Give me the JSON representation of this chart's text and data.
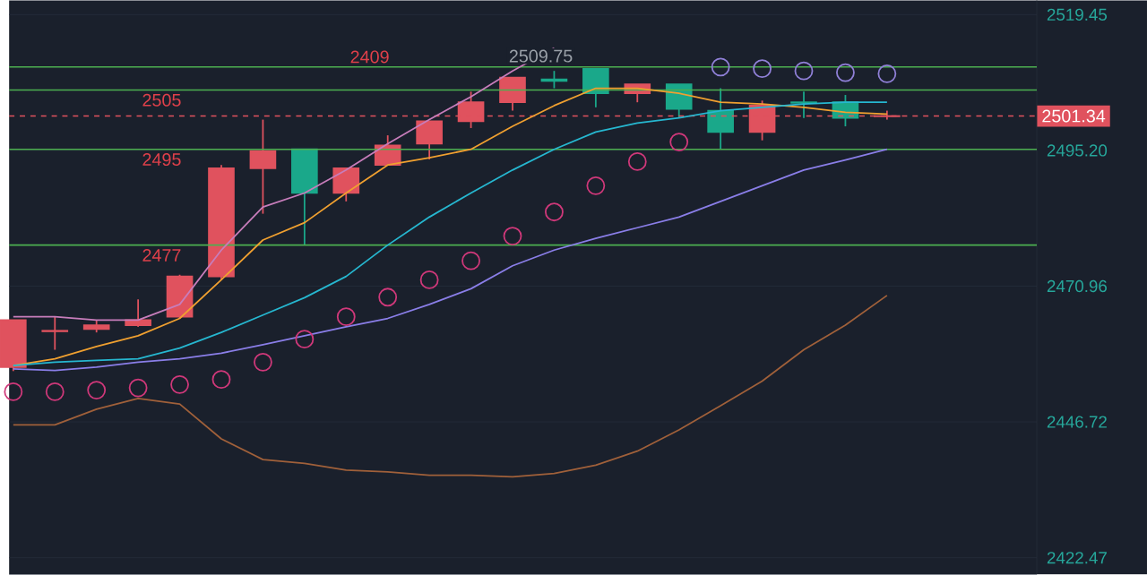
{
  "chart_data": {
    "type": "candlestick",
    "categories": [
      null,
      null,
      null,
      null,
      null,
      null,
      null,
      null,
      null,
      null,
      null,
      null,
      null,
      null,
      null,
      null,
      null,
      null,
      null,
      null,
      null,
      null
    ],
    "ohlc": [
      [
        2456.5,
        2464.9,
        2455.8,
        2464.9
      ],
      [
        2463.0,
        2465.5,
        2459.6,
        2462.9
      ],
      [
        2463.3,
        2464.9,
        2462.7,
        2464.0
      ],
      [
        2464.0,
        2468.6,
        2463.7,
        2464.9
      ],
      [
        2465.5,
        2473.0,
        2465.2,
        2472.7
      ],
      [
        2472.7,
        2492.6,
        2472.1,
        2492.0
      ],
      [
        2492.0,
        2500.7,
        2483.9,
        2495.1
      ],
      [
        2495.4,
        2495.4,
        2478.3,
        2487.6
      ],
      [
        2487.6,
        2492.0,
        2486.1,
        2492.0
      ],
      [
        2492.6,
        2497.9,
        2492.6,
        2496.1
      ],
      [
        2496.4,
        2500.4,
        2493.6,
        2500.4
      ],
      [
        2500.4,
        2505.7,
        2499.2,
        2503.8
      ],
      [
        2503.8,
        2508.2,
        2502.3,
        2508.2
      ],
      [
        2507.9,
        2509.4,
        2506.3,
        2507.6
      ],
      [
        2509.75,
        2509.75,
        2502.9,
        2505.4
      ],
      [
        2505.4,
        2507.0,
        2503.8,
        2507.0
      ],
      [
        2507.0,
        2507.0,
        2501.0,
        2502.6
      ],
      [
        2502.3,
        2506.3,
        2495.4,
        2498.5
      ],
      [
        2498.5,
        2504.1,
        2497.0,
        2503.2
      ],
      [
        2503.8,
        2505.7,
        2501.0,
        2503.7
      ],
      [
        2503.8,
        2505.1,
        2499.5,
        2501.0
      ],
      [
        2501.3,
        2502.3,
        2500.7,
        2501.34
      ]
    ],
    "colors": [
      "#e0525e",
      "#e0525e",
      "#e0525e",
      "#e0525e",
      "#e0525e",
      "#e0525e",
      "#e0525e",
      "#1aa88a",
      "#e0525e",
      "#e0525e",
      "#e0525e",
      "#e0525e",
      "#e0525e",
      "#1aa88a",
      "#1aa88a",
      "#e0525e",
      "#1aa88a",
      "#1aa88a",
      "#e0525e",
      "#1aa88a",
      "#1aa88a",
      "#e0525e"
    ],
    "series": [
      {
        "type": "line",
        "color": "#c77dbb",
        "values": [
          2465.5,
          2465.5,
          2464.9,
          2464.9,
          2467.7,
          2477.4,
          2485.1,
          2487.6,
          2491.7,
          2496.4,
          2500.7,
          2504.8,
          2509.4,
          2513.5,
          null,
          null,
          null,
          null,
          null,
          null,
          null,
          null
        ]
      },
      {
        "type": "line",
        "color": "#f0a030",
        "values": [
          2456.8,
          2458.0,
          2460.2,
          2462.1,
          2465.2,
          2472.1,
          2479.2,
          2482.3,
          2487.6,
          2492.6,
          2493.9,
          2495.4,
          2499.5,
          2503.2,
          2506.3,
          2506.3,
          2505.4,
          2503.8,
          2503.5,
          2502.9,
          2502.0,
          2501.7
        ]
      },
      {
        "type": "line",
        "color": "#26b7d0",
        "values": [
          2456.8,
          2457.4,
          2457.7,
          2458.0,
          2459.9,
          2462.7,
          2465.8,
          2468.9,
          2472.7,
          2478.3,
          2483.3,
          2487.6,
          2491.7,
          2495.4,
          2498.5,
          2500.1,
          2501.0,
          2502.3,
          2502.9,
          2503.5,
          2503.8,
          2503.8
        ]
      },
      {
        "type": "line",
        "color": "#8a7ee8",
        "values": [
          2456.2,
          2455.9,
          2456.5,
          2457.4,
          2458.0,
          2459.0,
          2460.5,
          2462.1,
          2463.7,
          2465.2,
          2467.7,
          2470.5,
          2474.6,
          2477.4,
          2479.5,
          2481.4,
          2483.3,
          2486.1,
          2488.9,
          2491.7,
          2493.5,
          2495.4
        ]
      },
      {
        "type": "line",
        "color": "#a0603a",
        "values": [
          2446.2,
          2446.2,
          2449.0,
          2450.9,
          2449.9,
          2443.7,
          2440.0,
          2439.3,
          2438.1,
          2437.8,
          2437.2,
          2437.2,
          2436.9,
          2437.5,
          2439.0,
          2441.5,
          2445.3,
          2449.6,
          2454.0,
          2459.6,
          2464.0,
          2469.3
        ]
      },
      {
        "type": "scatter",
        "marker": "circle",
        "color": "#d0387a",
        "values": [
          2452.1,
          2452.1,
          2452.4,
          2452.8,
          2453.4,
          2454.3,
          2457.4,
          2461.5,
          2465.5,
          2469.0,
          2472.1,
          2475.5,
          2479.9,
          2484.2,
          2488.9,
          2493.2,
          2496.7,
          null,
          null,
          null,
          null,
          null
        ]
      },
      {
        "type": "scatter",
        "marker": "circle",
        "color": "#9080d8",
        "values": [
          null,
          null,
          null,
          null,
          null,
          null,
          null,
          null,
          null,
          null,
          null,
          null,
          null,
          null,
          null,
          null,
          null,
          2510.1,
          2509.8,
          2509.4,
          2509.1,
          2508.9
        ]
      }
    ],
    "ylim": [
      2419.5,
      2522
    ],
    "yticks": [
      2422.47,
      2446.72,
      2470.96,
      {
        "value": 2495.2,
        "label": "2495.20"
      },
      2519.45
    ],
    "grid": "y",
    "ref_lines": [
      {
        "axis": "y",
        "value": 2510.1,
        "color": "#4caf50"
      },
      {
        "axis": "y",
        "value": 2506.0,
        "color": "#4caf50"
      },
      {
        "axis": "y",
        "value": 2495.4,
        "color": "#4caf50"
      },
      {
        "axis": "y",
        "value": 2478.3,
        "color": "#4caf50"
      },
      {
        "axis": "y",
        "value": 2501.34,
        "label": "2501.34",
        "color": "#e0525e",
        "line_style": "dashed"
      }
    ],
    "annotations": [
      {
        "text": "2509.75",
        "y": 2509.75
      },
      "2409",
      "2505",
      "2495",
      "2477"
    ]
  }
}
